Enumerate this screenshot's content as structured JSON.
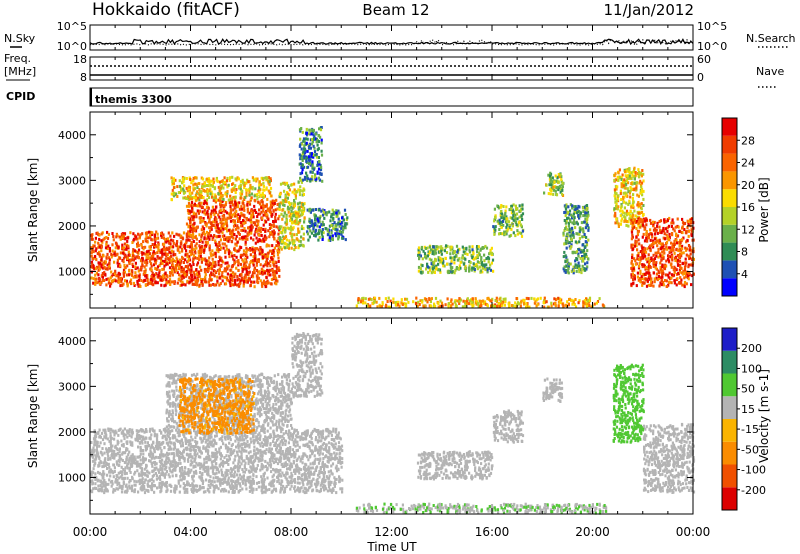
{
  "header": {
    "station": "Hokkaido (fitACF)",
    "beam": "Beam 12",
    "date": "11/Jan/2012"
  },
  "top_panels": {
    "nsky_label": "N.Sky",
    "nsearch_label": "N.Search",
    "noise_ticks": [
      "10^5",
      "10^0"
    ],
    "freq_label_1": "Freq.",
    "freq_label_2": "[MHz]",
    "freq_ticks": [
      "18",
      "8"
    ],
    "nave_label": "Nave",
    "nave_ticks": [
      "60",
      "0"
    ],
    "cpid_label": "CPID",
    "cpid_value": "themis 3300"
  },
  "x_axis": {
    "label": "Time UT",
    "ticks": [
      "00:00",
      "04:00",
      "08:00",
      "12:00",
      "16:00",
      "20:00",
      "00:00"
    ],
    "hours": [
      0,
      4,
      8,
      12,
      16,
      20,
      24
    ]
  },
  "y_axis": {
    "label": "Slant Range [km]",
    "ticks": [
      "4000",
      "3000",
      "2000",
      "1000"
    ],
    "values": [
      4000,
      3000,
      2000,
      1000
    ],
    "range": [
      200,
      4500
    ]
  },
  "power_scale": {
    "label": "Power [dB]",
    "ticks": [
      "28",
      "24",
      "20",
      "16",
      "12",
      "8",
      "4"
    ],
    "colors": [
      "#0000ff",
      "#1e50b4",
      "#2f8c55",
      "#6ab04a",
      "#b4d228",
      "#fadc00",
      "#fa9600",
      "#fa6400",
      "#f03c00",
      "#e60000"
    ]
  },
  "velocity_scale": {
    "label": "Velocity [m s-1]",
    "ticks": [
      "200",
      "100",
      "50",
      "15",
      "-15",
      "-50",
      "-100",
      "-200"
    ],
    "colors": [
      "#1e1ec8",
      "#2d8c64",
      "#50c832",
      "#b4b4b4",
      "#fab400",
      "#fa8c00",
      "#f05000",
      "#dc0000"
    ]
  },
  "chart_data": [
    {
      "type": "heatmap",
      "title": "Power [dB]",
      "xlabel": "Time UT",
      "ylabel": "Slant Range [km]",
      "xlim": [
        0,
        24
      ],
      "ylim": [
        200,
        4500
      ],
      "zlim": [
        0,
        32
      ],
      "regions": [
        {
          "t": [
            0.0,
            3.8
          ],
          "r": [
            700,
            1900
          ],
          "value": 26
        },
        {
          "t": [
            3.8,
            7.5
          ],
          "r": [
            700,
            2600
          ],
          "value": 26
        },
        {
          "t": [
            3.2,
            7.2
          ],
          "r": [
            2600,
            3100
          ],
          "value": 18
        },
        {
          "t": [
            7.5,
            8.5
          ],
          "r": [
            1500,
            3000
          ],
          "value": 16
        },
        {
          "t": [
            8.3,
            9.2
          ],
          "r": [
            3000,
            4200
          ],
          "value": 8
        },
        {
          "t": [
            8.6,
            10.2
          ],
          "r": [
            1700,
            2400
          ],
          "value": 8
        },
        {
          "t": [
            10.5,
            20.5
          ],
          "r": [
            250,
            450
          ],
          "value": 20
        },
        {
          "t": [
            13.0,
            16.0
          ],
          "r": [
            1000,
            1600
          ],
          "value": 12
        },
        {
          "t": [
            16.0,
            17.2
          ],
          "r": [
            1800,
            2500
          ],
          "value": 12
        },
        {
          "t": [
            18.0,
            18.8
          ],
          "r": [
            2700,
            3200
          ],
          "value": 14
        },
        {
          "t": [
            18.8,
            19.8
          ],
          "r": [
            1000,
            2500
          ],
          "value": 10
        },
        {
          "t": [
            20.8,
            22.0
          ],
          "r": [
            2000,
            3300
          ],
          "value": 18
        },
        {
          "t": [
            21.5,
            24.0
          ],
          "r": [
            700,
            2200
          ],
          "value": 26
        }
      ]
    },
    {
      "type": "heatmap",
      "title": "Velocity [m s-1]",
      "xlabel": "Time UT",
      "ylabel": "Slant Range [km]",
      "xlim": [
        0,
        24
      ],
      "ylim": [
        200,
        4500
      ],
      "zlim": [
        -200,
        200
      ],
      "regions": [
        {
          "t": [
            0.0,
            10.0
          ],
          "r": [
            700,
            2100
          ],
          "value": 0
        },
        {
          "t": [
            3.0,
            8.0
          ],
          "r": [
            2100,
            3300
          ],
          "value": 0
        },
        {
          "t": [
            8.0,
            9.2
          ],
          "r": [
            2800,
            4200
          ],
          "value": 0
        },
        {
          "t": [
            10.5,
            20.5
          ],
          "r": [
            250,
            450
          ],
          "value": 30
        },
        {
          "t": [
            13.0,
            16.0
          ],
          "r": [
            1000,
            1600
          ],
          "value": 0
        },
        {
          "t": [
            16.0,
            17.2
          ],
          "r": [
            1800,
            2500
          ],
          "value": 0
        },
        {
          "t": [
            18.0,
            18.8
          ],
          "r": [
            2700,
            3200
          ],
          "value": 0
        },
        {
          "t": [
            20.8,
            22.0
          ],
          "r": [
            1800,
            3500
          ],
          "value": 60
        },
        {
          "t": [
            22.0,
            24.0
          ],
          "r": [
            700,
            2200
          ],
          "value": 0
        },
        {
          "t": [
            3.5,
            6.5
          ],
          "r": [
            2000,
            3200
          ],
          "value": -40
        }
      ]
    }
  ]
}
